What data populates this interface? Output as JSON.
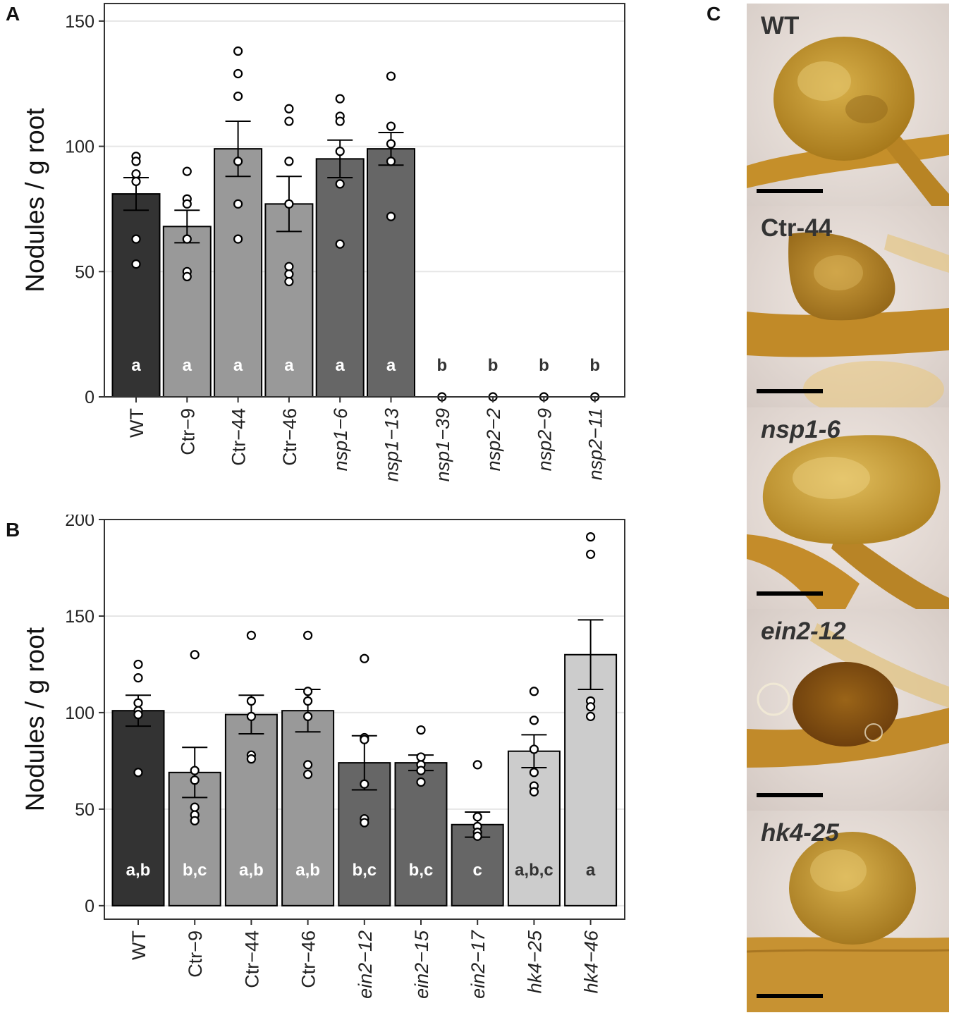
{
  "panel_labels": {
    "a": "A",
    "b": "B",
    "c": "C"
  },
  "chart_data": [
    {
      "id": "A",
      "type": "bar",
      "ylabel": "Nodules / g root",
      "ylim": [
        0,
        157
      ],
      "yticks": [
        0,
        50,
        100,
        150
      ],
      "grid": true,
      "categories": [
        "WT",
        "Ctr−9",
        "Ctr−44",
        "Ctr−46",
        "nsp1−6",
        "nsp1−13",
        "nsp1−39",
        "nsp2−2",
        "nsp2−9",
        "nsp2−11"
      ],
      "italic": [
        false,
        false,
        false,
        false,
        true,
        true,
        true,
        true,
        true,
        true
      ],
      "values": [
        81,
        68,
        99,
        77,
        95,
        99,
        0,
        0,
        0,
        0
      ],
      "se": [
        6.5,
        6.5,
        11,
        11,
        7.5,
        6.5,
        0,
        0,
        0,
        0
      ],
      "colors": [
        "#333333",
        "#999999",
        "#999999",
        "#999999",
        "#666666",
        "#666666",
        "#666666",
        "#666666",
        "#666666",
        "#666666"
      ],
      "letters": [
        "a",
        "a",
        "a",
        "a",
        "a",
        "a",
        "b",
        "b",
        "b",
        "b"
      ],
      "letter_colors": [
        "#ffffff",
        "#ffffff",
        "#ffffff",
        "#ffffff",
        "#ffffff",
        "#ffffff",
        "#333333",
        "#333333",
        "#333333",
        "#333333"
      ],
      "letter_value": 13,
      "points": [
        [
          96,
          94,
          89,
          86,
          63,
          53
        ],
        [
          90,
          79,
          77,
          63,
          50,
          48
        ],
        [
          138,
          129,
          120,
          94,
          77,
          63
        ],
        [
          115,
          110,
          94,
          77,
          52,
          49,
          46
        ],
        [
          119,
          112,
          110,
          98,
          85,
          61
        ],
        [
          128,
          108,
          101,
          94,
          72
        ],
        [
          0
        ],
        [
          0
        ],
        [
          0
        ],
        [
          0
        ]
      ]
    },
    {
      "id": "B",
      "type": "bar",
      "ylabel": "Nodules / g root",
      "ylim": [
        -7,
        200
      ],
      "yticks": [
        0,
        50,
        100,
        150,
        200
      ],
      "grid": true,
      "categories": [
        "WT",
        "Ctr−9",
        "Ctr−44",
        "Ctr−46",
        "ein2−12",
        "ein2−15",
        "ein2−17",
        "hk4−25",
        "hk4−46"
      ],
      "italic": [
        false,
        false,
        false,
        false,
        true,
        true,
        true,
        true,
        true
      ],
      "values": [
        101,
        69,
        99,
        101,
        74,
        74,
        42,
        80,
        130
      ],
      "se": [
        8,
        13,
        10,
        11,
        14,
        4,
        6.5,
        8.5,
        18
      ],
      "colors": [
        "#333333",
        "#999999",
        "#999999",
        "#999999",
        "#666666",
        "#666666",
        "#666666",
        "#cccccc",
        "#cccccc"
      ],
      "letters": [
        "a,b",
        "b,c",
        "a,b",
        "a,b",
        "b,c",
        "b,c",
        "c",
        "a,b,c",
        "a"
      ],
      "letter_colors": [
        "#ffffff",
        "#ffffff",
        "#ffffff",
        "#ffffff",
        "#ffffff",
        "#ffffff",
        "#ffffff",
        "#333333",
        "#333333"
      ],
      "letter_value": 19,
      "points": [
        [
          125,
          118,
          105,
          101,
          99,
          69
        ],
        [
          130,
          70,
          65,
          51,
          47,
          44
        ],
        [
          140,
          106,
          98,
          78,
          76
        ],
        [
          140,
          111,
          106,
          98,
          73,
          68
        ],
        [
          128,
          87,
          86,
          63,
          45,
          43
        ],
        [
          91,
          77,
          73,
          70,
          64
        ],
        [
          73,
          46,
          41,
          38,
          36
        ],
        [
          111,
          96,
          81,
          69,
          62,
          59
        ],
        [
          191,
          182,
          106,
          103,
          98
        ]
      ]
    }
  ],
  "photos": [
    {
      "label": "WT",
      "italic": false
    },
    {
      "label": "Ctr-44",
      "italic": false
    },
    {
      "label": "nsp1-6",
      "italic": true
    },
    {
      "label": "ein2-12",
      "italic": true
    },
    {
      "label": "hk4-25",
      "italic": true
    }
  ]
}
